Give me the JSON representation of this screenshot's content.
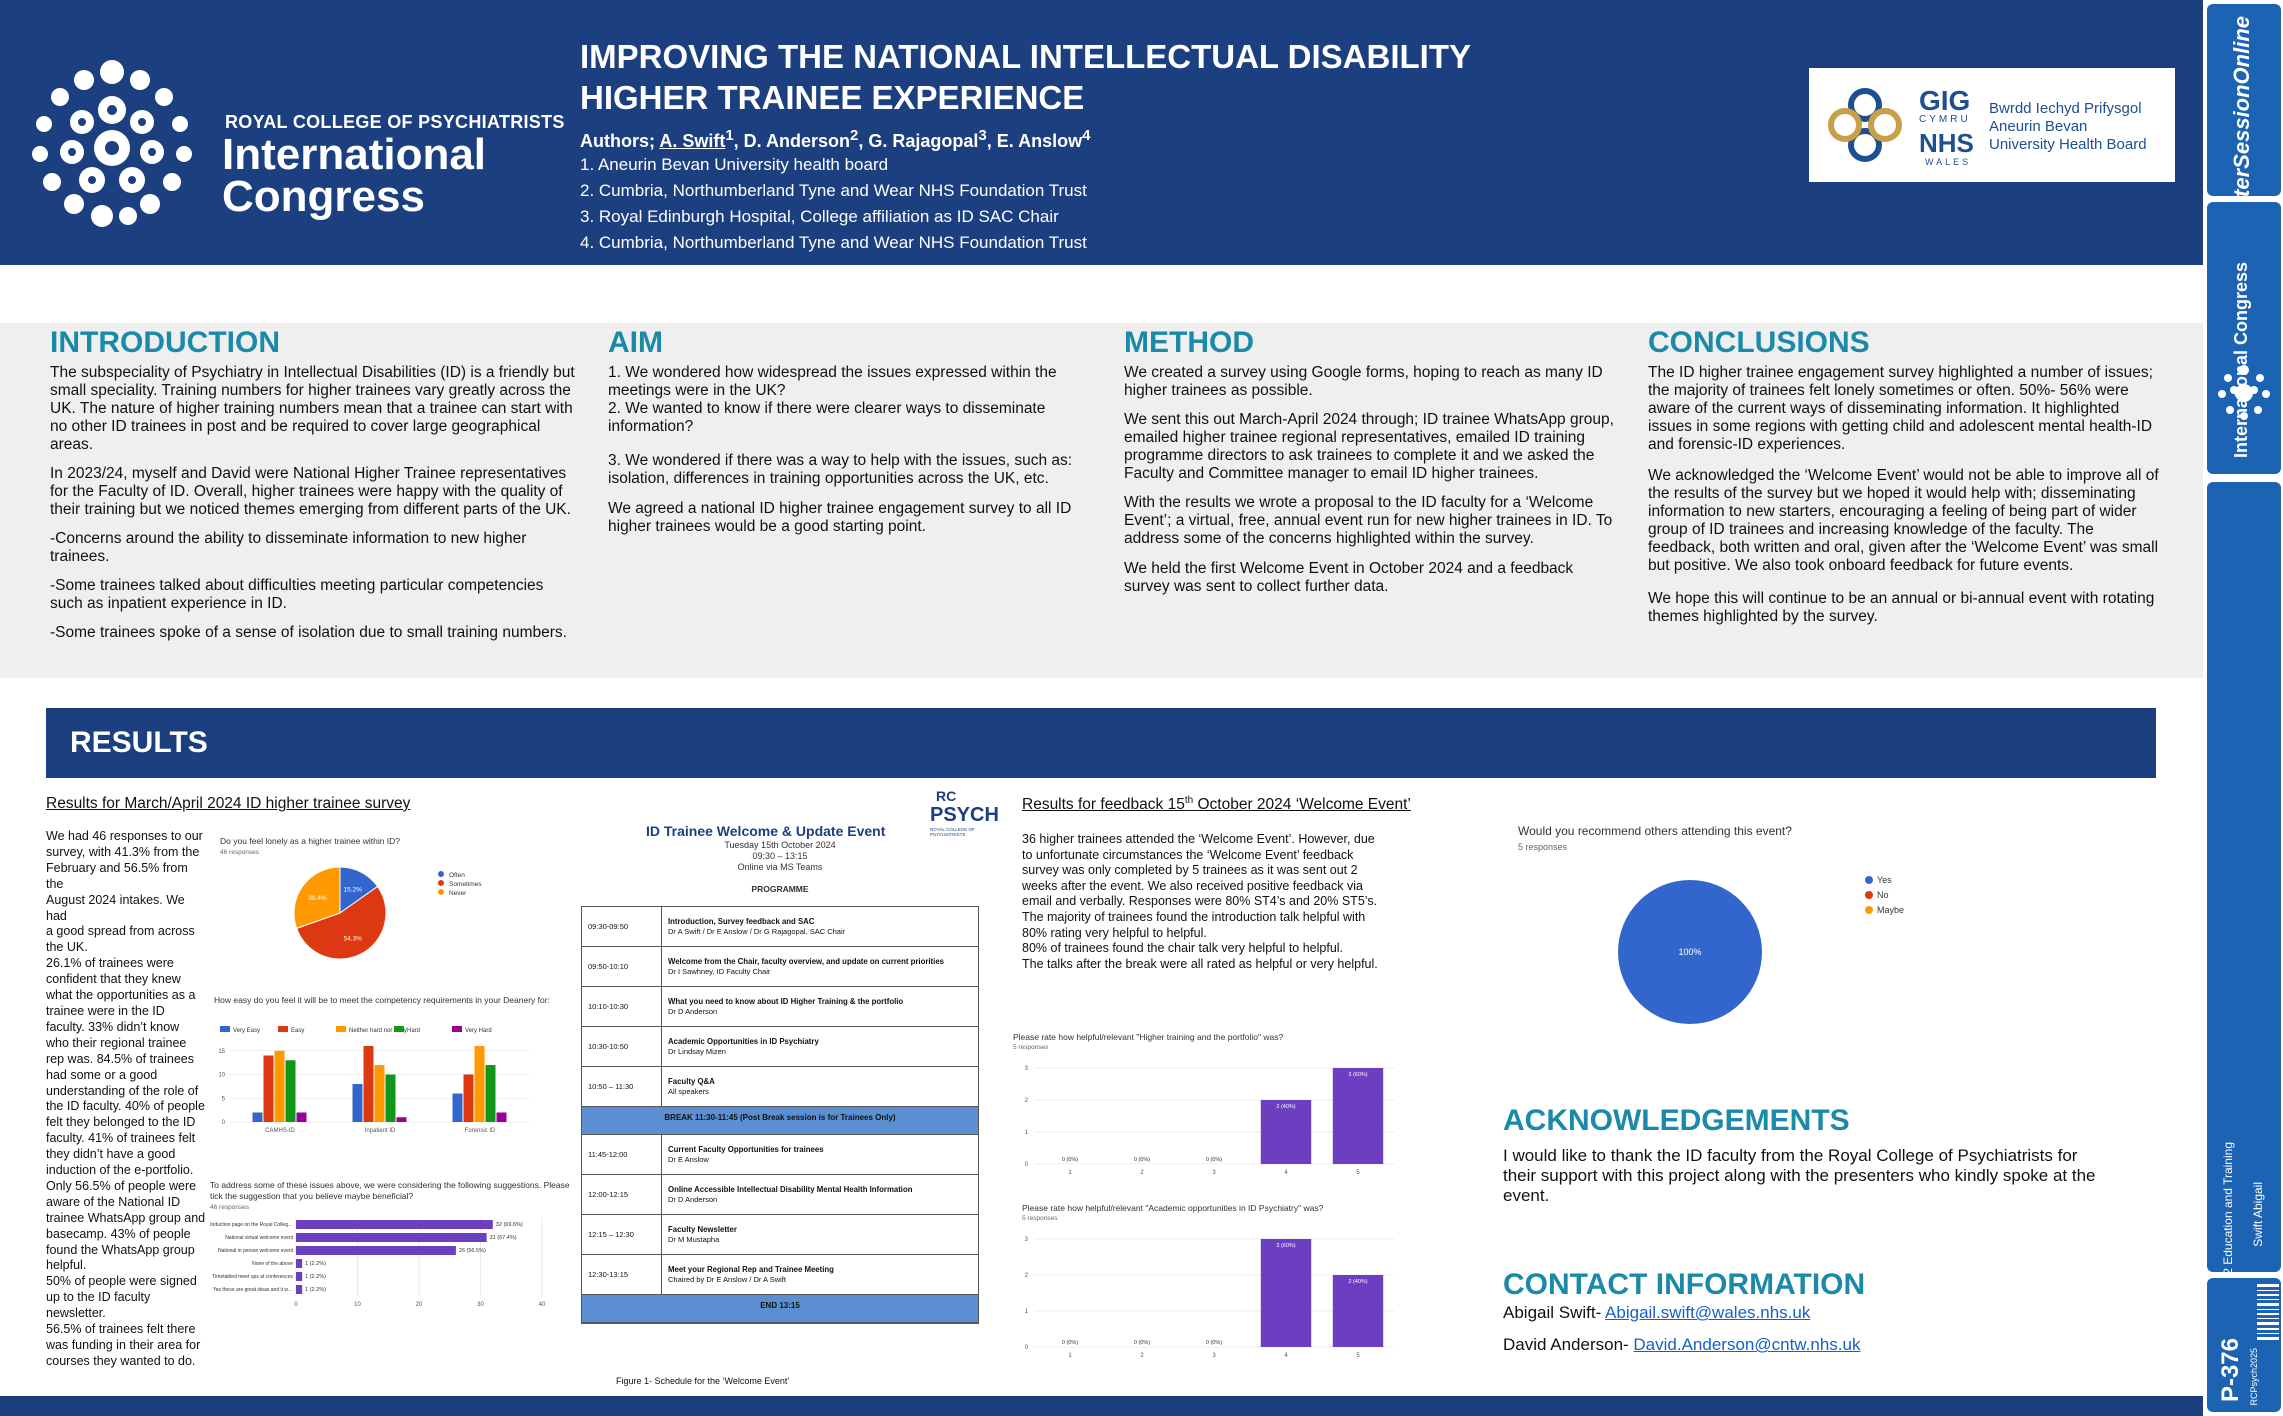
{
  "header": {
    "org_line": "ROYAL COLLEGE OF PSYCHIATRISTS",
    "org_name_1": "International",
    "org_name_2": "Congress",
    "title_line_1": "IMPROVING THE NATIONAL INTELLECTUAL DISABILITY",
    "title_line_2": "HIGHER TRAINEE EXPERIENCE",
    "authors_prefix": "Authors; ",
    "author_1": "A. Swift",
    "author_1_sup": "1",
    "author_rest": ", D. Anderson",
    "author_2_sup": "2",
    "author_3": ", G. Rajagopal",
    "author_3_sup": "3",
    "author_4": ", E. Anslow",
    "author_4_sup": "4",
    "affiliations": [
      "1. Aneurin Bevan University health board",
      "2. Cumbria, Northumberland Tyne and Wear NHS Foundation Trust",
      "3. Royal Edinburgh Hospital, College affiliation as ID SAC Chair",
      "4. Cumbria, Northumberland Tyne and Wear NHS Foundation Trust"
    ],
    "nhs": {
      "gig": "GIG",
      "cymru": "CYMRU",
      "nhs": "NHS",
      "wales": "WALES",
      "board_lines": [
        "Bwrdd Iechyd Prifysgol",
        "Aneurin Bevan",
        "University Health Board"
      ]
    }
  },
  "strip": {
    "brand": "PosterSessionOnline",
    "brand_sub": "International Congress",
    "category": "2 Education and Training",
    "author": "Swift Abigail",
    "poster_id": "P-376",
    "event": "RCPsych2025"
  },
  "introduction": {
    "heading": "INTRODUCTION",
    "paragraphs": [
      [
        "The subspeciality of Psychiatry in Intellectual Disabilities (ID) is a friendly but",
        "small speciality. Training numbers for higher trainees vary greatly across the",
        "UK. The nature of higher training numbers mean that a trainee can start with",
        "no other ID trainees in post and be required to cover large geographical",
        "areas."
      ],
      [
        "In 2023/24, myself and David were National Higher Trainee representatives",
        "for the Faculty of ID. Overall, higher trainees were happy with the quality of",
        "their training but we noticed themes emerging from different parts of the UK."
      ],
      [
        "-Concerns around the ability to disseminate information to new higher",
        "trainees."
      ],
      [
        "-Some trainees talked about difficulties meeting particular competencies",
        "such as inpatient experience in ID."
      ],
      [
        "-Some trainees spoke of a sense of isolation due to small training numbers."
      ]
    ]
  },
  "aim": {
    "heading": "AIM",
    "paragraphs": [
      [
        "1. We wondered how widespread the issues expressed within the",
        "meetings were in the UK?",
        "2. We wanted to know if there were clearer ways to disseminate",
        "information?"
      ],
      [
        "3. We wondered if there was a way to help with the issues, such as:",
        "isolation, differences in training opportunities across the UK, etc."
      ],
      [
        "We agreed a national ID higher trainee engagement survey to all ID",
        "higher trainees would be a good starting point."
      ]
    ]
  },
  "method": {
    "heading": "METHOD",
    "paragraphs": [
      [
        "We created a survey using Google forms, hoping to reach as many ID",
        "higher trainees as possible."
      ],
      [
        "We sent this out March-April 2024 through; ID trainee WhatsApp group,",
        "emailed higher trainee regional representatives, emailed ID training",
        "programme directors to ask trainees to complete it and we asked the",
        "Faculty and Committee manager to email ID higher trainees."
      ],
      [
        "With the results we wrote a proposal to the ID faculty for a ‘Welcome",
        "Event’; a virtual, free, annual event run for new higher trainees in ID. To",
        "address some of the concerns highlighted within the survey."
      ],
      [
        "We held the first Welcome Event in October 2024 and a feedback",
        "survey was sent to collect further data."
      ]
    ]
  },
  "conclusions": {
    "heading": "CONCLUSIONS",
    "paragraphs": [
      [
        "The ID higher trainee engagement survey highlighted a number of issues;",
        "the majority of trainees felt lonely sometimes or often. 50%- 56% were",
        "aware of the current ways of disseminating information. It highlighted",
        "issues in some regions with getting child and adolescent mental health-ID",
        "and forensic-ID experiences."
      ],
      [
        "We acknowledged the ‘Welcome Event’ would not be able to improve all of",
        "the results of the survey but we hoped it would help with; disseminating",
        "information to new starters, encouraging a feeling of being part of wider",
        "group of ID trainees and increasing knowledge of the faculty. The",
        "feedback, both written and oral, given after the ‘Welcome Event’ was small",
        "but positive. We also took onboard feedback for future events."
      ],
      [
        "We hope this will continue to be an annual or bi-annual event with rotating",
        "themes highlighted by the survey."
      ]
    ]
  },
  "results": {
    "heading": "RESULTS",
    "survey_heading": "Results for March/April 2024 ID higher trainee survey",
    "survey_text": [
      "We had 46 responses to our",
      "survey, with 41.3% from the",
      "February and 56.5% from the",
      "August 2024 intakes. We had",
      "a good spread from across",
      "the UK.",
      "26.1% of trainees were",
      "confident that they knew",
      "what the opportunities as a",
      "trainee were in the ID",
      "faculty. 33% didn’t know",
      "who their regional trainee",
      "rep was. 84.5% of trainees",
      "had some or a good",
      "understanding of the role of",
      "the ID faculty. 40% of people",
      "felt they belonged to the ID",
      "faculty. 41% of trainees felt",
      "they didn’t have a good",
      "induction of the e-portfolio.",
      "Only 56.5% of people were",
      "aware of the National ID",
      "trainee WhatsApp group and",
      "basecamp. 43% of people",
      "found the WhatsApp group",
      "helpful.",
      "50% of people were signed",
      "up to the ID faculty",
      "newsletter.",
      "56.5% of trainees felt there",
      "was funding in their area for",
      "courses they wanted to do."
    ],
    "feedback_heading_pre": "Results for feedback 15",
    "feedback_heading_sup": "th",
    "feedback_heading_post": " October 2024 ‘Welcome Event’",
    "feedback_text": [
      "36 higher trainees attended the ‘Welcome Event’. However, due",
      "to unfortunate circumstances the ‘Welcome Event’ feedback",
      "survey was only completed by 5 trainees as it was sent out 2",
      "weeks after the event. We also received positive feedback via",
      "email and verbally. Responses were 80% ST4’s and 20% ST5’s.",
      "The majority of trainees found the introduction talk helpful with",
      "80% rating very helpful to helpful.",
      "80% of trainees found the chair talk very helpful to helpful.",
      "The talks after the break were all rated as helpful or very helpful."
    ],
    "figure_caption": "Figure 1- Schedule for the ‘Welcome Event’"
  },
  "programme": {
    "logo_top": "RC",
    "logo_main": "PSYCH",
    "logo_sub": "ROYAL COLLEGE OF PSYCHIATRISTS",
    "title": "ID Trainee Welcome & Update Event",
    "date": "Tuesday 15th October 2024",
    "time": "09:30 – 13:15",
    "venue": "Online via MS Teams",
    "label": "PROGRAMME",
    "rows": [
      {
        "time": "09:30-09:50",
        "title": "Introduction, Survey feedback and SAC",
        "who": "Dr A Swift / Dr E Anslow / Dr G Rajagopal, SAC Chair"
      },
      {
        "time": "09:50-10:10",
        "title": "Welcome from the Chair, faculty overview, and update on current priorities",
        "who": "Dr I Sawhney, ID Faculty Chair"
      },
      {
        "time": "10:10-10:30",
        "title": "What you need to know about ID Higher Training & the portfolio",
        "who": "Dr D Anderson"
      },
      {
        "time": "10:30-10:50",
        "title": "Academic Opportunities in ID Psychiatry",
        "who": "Dr Lindsay Mizen"
      },
      {
        "time": "10:50 – 11:30",
        "title": "Faculty Q&A",
        "who": "All speakers"
      },
      {
        "break": "BREAK 11:30-11:45 (Post Break session is for Trainees Only)"
      },
      {
        "time": "11:45-12:00",
        "title": "Current Faculty Opportunities for trainees",
        "who": "Dr E Anslow"
      },
      {
        "time": "12:00-12:15",
        "title": "Online Accessible Intellectual Disability Mental Health Information",
        "who": "Dr D Anderson"
      },
      {
        "time": "12:15 – 12:30",
        "title": "Faculty Newsletter",
        "who": "Dr M Mustapha"
      },
      {
        "time": "12:30-13:15",
        "title": "Meet your Regional Rep and Trainee Meeting",
        "who": "Chaired by Dr E Anslow / Dr A Swift"
      },
      {
        "break": "END 13:15"
      }
    ]
  },
  "chart_data": [
    {
      "type": "pie",
      "title": "Do you feel lonely as a higher trainee within ID?",
      "subtitle": "46 responses",
      "categories": [
        "Often",
        "Sometimes",
        "Never"
      ],
      "values": [
        15.2,
        54.3,
        30.4
      ],
      "slice_labels": [
        "15.2%",
        "54.3%",
        "30.4%"
      ],
      "colors": [
        "#3366cc",
        "#dc3912",
        "#ff9900"
      ],
      "legend": "right"
    },
    {
      "type": "bar",
      "title": "How easy do you feel it will be to meet the competency requirements in your Deanery  for:",
      "categories": [
        "CAMHS-ID",
        "Inpatient ID",
        "Forensic ID"
      ],
      "series": [
        {
          "name": "Very Easy",
          "values": [
            2,
            8,
            6
          ],
          "color": "#3366cc"
        },
        {
          "name": "Easy",
          "values": [
            14,
            16,
            10
          ],
          "color": "#dc3912"
        },
        {
          "name": "Neither hard nor easy",
          "values": [
            15,
            12,
            16
          ],
          "color": "#ff9900"
        },
        {
          "name": "Hard",
          "values": [
            13,
            10,
            12
          ],
          "color": "#109618"
        },
        {
          "name": "Very Hard",
          "values": [
            2,
            1,
            2
          ],
          "color": "#990099"
        }
      ],
      "ylim": [
        0,
        16
      ],
      "yticks": [
        0,
        5,
        10,
        15
      ],
      "legend": "top"
    },
    {
      "type": "bar",
      "orientation": "horizontal",
      "title": "To address some of these issues above, we were considering the following suggestions. Please tick the suggestion that you believe maybe beneficial?",
      "subtitle": "46 responses",
      "categories": [
        "Induction page on the Royal College website for ID",
        "National virtual welcome event",
        "National in person welcome event",
        "None of the above",
        "Timetabled meet ups at conferences",
        "Yes these are great ideas and it would be important that attend..."
      ],
      "values": [
        32,
        31,
        26,
        1,
        1,
        1
      ],
      "value_labels": [
        "32 (69.6%)",
        "31 (67.4%)",
        "26 (56.5%)",
        "1 (2.2%)",
        "1 (2.2%)",
        "1 (2.2%)"
      ],
      "xlim": [
        0,
        40
      ],
      "xticks": [
        0,
        10,
        20,
        30,
        40
      ],
      "color": "#6b3fc0"
    },
    {
      "type": "pie",
      "title": "Would you recommend others attending this event?",
      "subtitle": "5 responses",
      "categories": [
        "Yes",
        "No",
        "Maybe"
      ],
      "values": [
        100,
        0,
        0
      ],
      "slice_labels": [
        "100%"
      ],
      "colors": [
        "#3366cc",
        "#dc3912",
        "#ff9900"
      ],
      "legend": "right"
    },
    {
      "type": "bar",
      "title": "Please rate how helpful/relevant \"Higher training and the portfolio\" was?",
      "subtitle": "5 responses",
      "categories": [
        "1",
        "2",
        "3",
        "4",
        "5"
      ],
      "values": [
        0,
        0,
        0,
        2,
        3
      ],
      "value_labels": [
        "0 (0%)",
        "0 (0%)",
        "0 (0%)",
        "2 (40%)",
        "3 (60%)"
      ],
      "ylim": [
        0,
        3
      ],
      "yticks": [
        0,
        1,
        2,
        3
      ],
      "color": "#6b3fc0"
    },
    {
      "type": "bar",
      "title": "Please rate how helpful/relevant \"Academic opportunities in ID Psychiatry\" was?",
      "subtitle": "5 responses",
      "categories": [
        "1",
        "2",
        "3",
        "4",
        "5"
      ],
      "values": [
        0,
        0,
        0,
        3,
        2
      ],
      "value_labels": [
        "0 (0%)",
        "0 (0%)",
        "0 (0%)",
        "3 (60%)",
        "2 (40%)"
      ],
      "ylim": [
        0,
        3
      ],
      "yticks": [
        0,
        1,
        2,
        3
      ],
      "color": "#6b3fc0"
    }
  ],
  "acknowledgements": {
    "heading": "ACKNOWLEDGEMENTS",
    "lines": [
      "I would like to thank the ID faculty from the Royal College of Psychiatrists for",
      "their support with this project along with the presenters who kindly spoke at the",
      "event."
    ]
  },
  "contact": {
    "heading": "CONTACT INFORMATION",
    "contact_1_label": "Abigail Swift- ",
    "contact_1_email": "Abigail.swift@wales.nhs.uk",
    "contact_2_label": "David Anderson- ",
    "contact_2_email": "David.Anderson@cntw.nhs.uk"
  }
}
